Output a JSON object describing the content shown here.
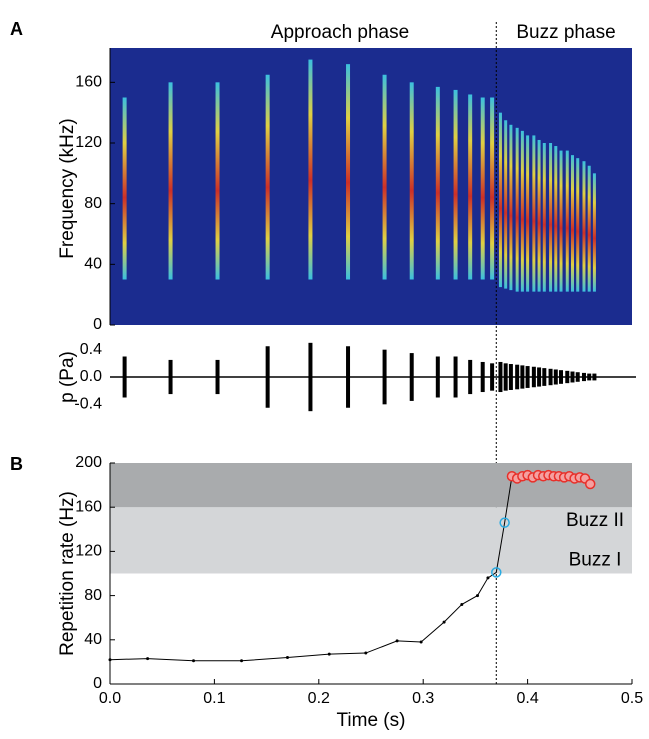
{
  "chart_data": [
    {
      "panel": "A",
      "type": "spectrogram",
      "annotations": [
        "Approach phase",
        "Buzz phase"
      ],
      "ylabel": "Frequency (kHz)",
      "xlim": [
        0,
        0.5
      ],
      "ylim": [
        0,
        180
      ],
      "yticks": [
        0,
        40,
        80,
        120,
        160
      ],
      "phase_boundary": 0.37,
      "background": "#1b2c8f",
      "x": [
        0.014,
        0.058,
        0.103,
        0.151,
        0.192,
        0.228,
        0.263,
        0.289,
        0.314,
        0.331,
        0.345,
        0.357,
        0.366,
        0.374,
        0.379,
        0.384,
        0.39,
        0.395,
        0.4,
        0.406,
        0.411,
        0.416,
        0.422,
        0.427,
        0.432,
        0.438,
        0.443,
        0.448,
        0.454,
        0.459,
        0.464
      ],
      "values": [
        150,
        160,
        160,
        165,
        175,
        172,
        165,
        160,
        157,
        155,
        152,
        150,
        150,
        140,
        135,
        132,
        130,
        128,
        125,
        125,
        122,
        120,
        120,
        118,
        115,
        115,
        112,
        110,
        108,
        105,
        100
      ],
      "values_low": [
        30,
        30,
        30,
        30,
        30,
        30,
        30,
        30,
        30,
        30,
        30,
        30,
        30,
        25,
        24,
        23,
        22,
        22,
        22,
        22,
        22,
        22,
        22,
        22,
        22,
        22,
        22,
        22,
        22,
        22,
        22
      ]
    },
    {
      "type": "waveform",
      "ylabel": "p (Pa)",
      "xlim": [
        0,
        0.5
      ],
      "ylim": [
        -0.6,
        0.6
      ],
      "yticks": [
        0.4,
        {
          "value": 0,
          "label": "0.0"
        },
        -0.4
      ],
      "color": "#000000",
      "x": [
        0.014,
        0.058,
        0.103,
        0.151,
        0.192,
        0.228,
        0.263,
        0.289,
        0.314,
        0.331,
        0.345,
        0.357,
        0.366,
        0.374,
        0.379,
        0.384,
        0.39,
        0.395,
        0.4,
        0.406,
        0.411,
        0.416,
        0.422,
        0.427,
        0.432,
        0.438,
        0.443,
        0.448,
        0.454,
        0.459,
        0.464
      ],
      "values": [
        0.3,
        0.25,
        0.25,
        0.45,
        0.5,
        0.45,
        0.4,
        0.35,
        0.3,
        0.3,
        0.25,
        0.22,
        0.2,
        0.22,
        0.2,
        0.19,
        0.18,
        0.17,
        0.16,
        0.15,
        0.14,
        0.13,
        0.12,
        0.11,
        0.1,
        0.09,
        0.08,
        0.07,
        0.06,
        0.05,
        0.05
      ]
    },
    {
      "panel": "B",
      "type": "line",
      "xlabel": "Time (s)",
      "ylabel": "Repetition rate (Hz)",
      "xlim": [
        0,
        0.5
      ],
      "ylim": [
        0,
        200
      ],
      "xticks": [
        {
          "value": 0,
          "label": "0.0"
        },
        0.1,
        0.2,
        0.3,
        0.4,
        0.5
      ],
      "yticks": [
        0,
        40,
        80,
        120,
        160,
        200
      ],
      "bands": [
        {
          "name": "Buzz I",
          "range": [
            100,
            160
          ],
          "color": "#d4d6d8"
        },
        {
          "name": "Buzz II",
          "range": [
            160,
            200
          ],
          "color": "#a9abad"
        }
      ],
      "color": "#000000",
      "x": [
        0.0,
        0.036,
        0.08,
        0.126,
        0.17,
        0.21,
        0.245,
        0.275,
        0.298,
        0.32,
        0.337,
        0.352,
        0.362,
        0.37,
        0.378,
        0.385,
        0.39,
        0.395,
        0.4,
        0.405,
        0.41,
        0.415,
        0.42,
        0.425,
        0.43,
        0.435,
        0.44,
        0.445,
        0.45,
        0.455,
        0.46
      ],
      "values": [
        22,
        23,
        21,
        21,
        24,
        27,
        28,
        39,
        38,
        56,
        72,
        80,
        96,
        101,
        146,
        188,
        186,
        188,
        189,
        187,
        189,
        188,
        189,
        188,
        188,
        187,
        188,
        186,
        187,
        186,
        181
      ],
      "marker_colors": [
        null,
        null,
        null,
        null,
        null,
        null,
        null,
        null,
        null,
        null,
        null,
        null,
        null,
        "#29abe2",
        "#29abe2",
        "#e8302a",
        "#e8302a",
        "#e8302a",
        "#e8302a",
        "#e8302a",
        "#e8302a",
        "#e8302a",
        "#e8302a",
        "#e8302a",
        "#e8302a",
        "#e8302a",
        "#e8302a",
        "#e8302a",
        "#e8302a",
        "#e8302a",
        "#e8302a"
      ]
    }
  ]
}
